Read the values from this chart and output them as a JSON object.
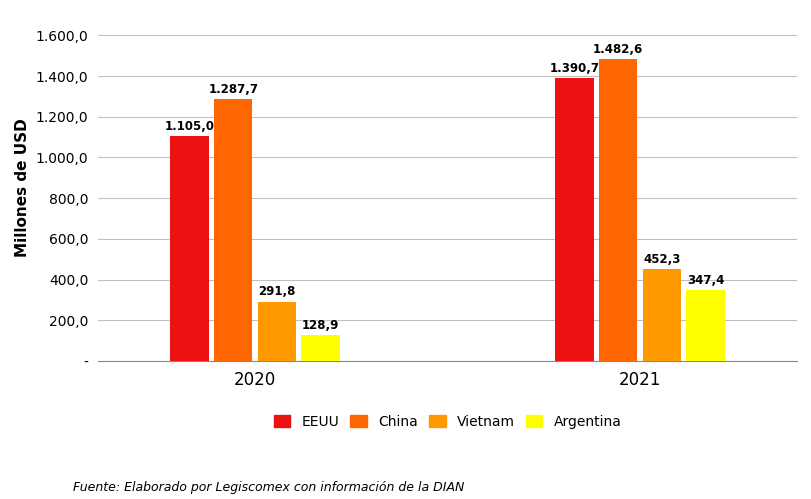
{
  "title": "",
  "ylabel": "Millones de USD",
  "years": [
    "2020",
    "2021"
  ],
  "countries": [
    "EEUU",
    "China",
    "Vietnam",
    "Argentina"
  ],
  "values": {
    "2020": [
      1105.0,
      1287.7,
      291.8,
      128.9
    ],
    "2021": [
      1390.7,
      1482.6,
      452.3,
      347.4
    ]
  },
  "bar_colors": {
    "EEUU": "#EE1111",
    "China": "#FF6600",
    "Vietnam": "#FF9900",
    "Argentina": "#FFFF00"
  },
  "ylim": [
    0,
    1700
  ],
  "yticks": [
    0,
    200,
    400,
    600,
    800,
    1000,
    1200,
    1400,
    1600
  ],
  "ytick_labels": [
    "-",
    "200,0",
    "400,0",
    "600,0",
    "800,0",
    "1.000,0",
    "1.200,0",
    "1.400,0",
    "1.600,0"
  ],
  "bar_width": 0.15,
  "group_positions": [
    1.0,
    2.5
  ],
  "source_text": "Fuente: Elaborado por Legiscomex con información de la DIAN",
  "background_color": "#FFFFFF",
  "grid_color": "#C0C0C0",
  "label_fontsize": 8.5,
  "axis_fontsize": 10,
  "ylabel_fontsize": 11,
  "xtick_fontsize": 12,
  "legend_fontsize": 10,
  "source_fontsize": 9
}
